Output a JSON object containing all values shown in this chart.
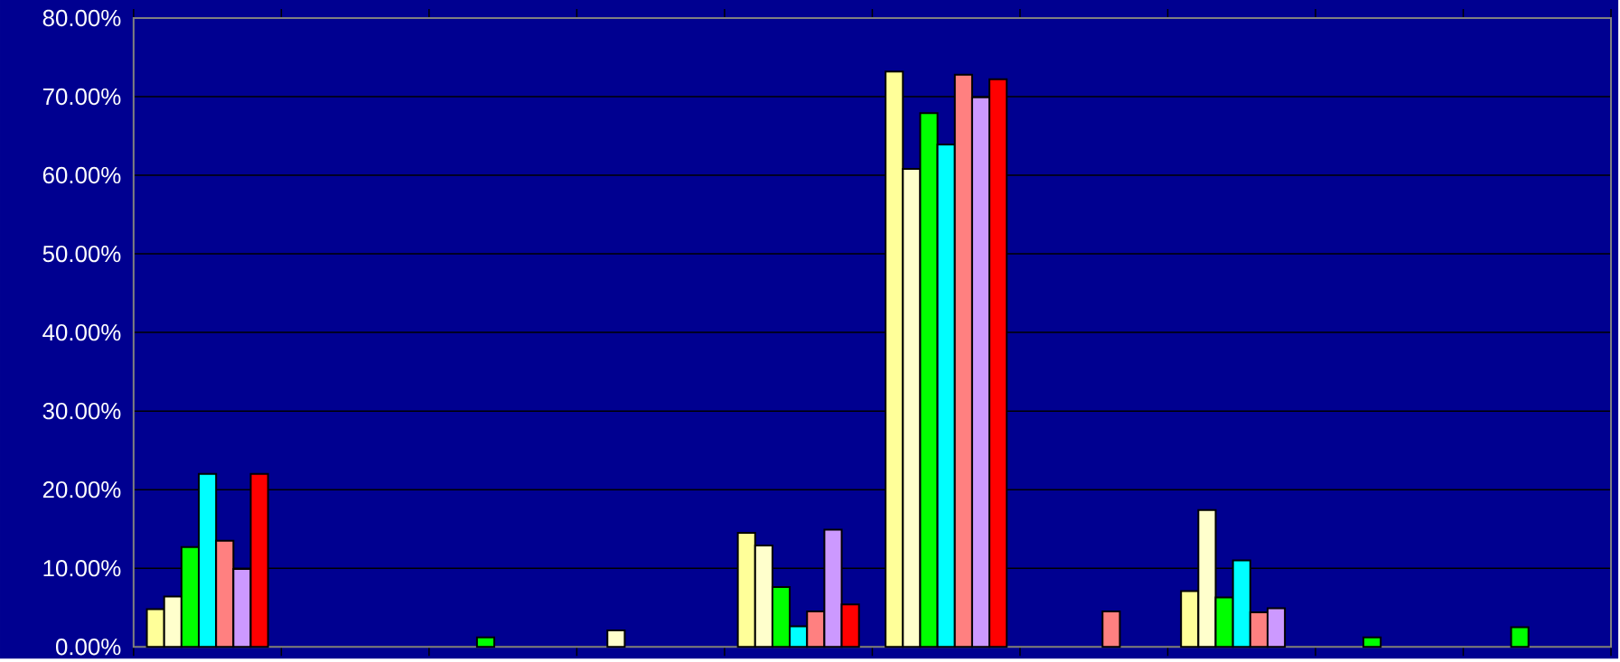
{
  "chart_data": {
    "type": "bar",
    "categories": [
      null,
      null,
      null,
      null,
      null,
      null,
      null,
      null,
      null,
      null
    ],
    "series": [
      {
        "color": "#ffff99",
        "values": [
          4.8,
          null,
          null,
          null,
          14.5,
          73.2,
          null,
          7.1,
          null,
          null
        ]
      },
      {
        "color": "#ffffcc",
        "values": [
          6.4,
          null,
          null,
          2.1,
          12.9,
          60.8,
          null,
          17.4,
          null,
          null
        ]
      },
      {
        "color": "#00ff00",
        "values": [
          12.7,
          null,
          1.2,
          null,
          7.6,
          67.9,
          null,
          6.3,
          1.2,
          2.5
        ]
      },
      {
        "color": "#00ffff",
        "values": [
          22.0,
          null,
          null,
          null,
          2.6,
          63.9,
          null,
          11.0,
          null,
          null
        ]
      },
      {
        "color": "#ff8080",
        "values": [
          13.5,
          null,
          null,
          null,
          4.5,
          72.8,
          4.5,
          4.4,
          null,
          null
        ]
      },
      {
        "color": "#cc99ff",
        "values": [
          9.9,
          null,
          null,
          null,
          14.9,
          69.9,
          null,
          4.9,
          null,
          null
        ]
      },
      {
        "color": "#ff0000",
        "values": [
          22.0,
          null,
          null,
          null,
          5.4,
          72.2,
          null,
          null,
          null,
          null
        ]
      }
    ],
    "ylim": [
      0,
      80
    ],
    "yticks": [
      {
        "value": 0,
        "label": "0.00%"
      },
      {
        "value": 10,
        "label": "10.00%"
      },
      {
        "value": 20,
        "label": "20.00%"
      },
      {
        "value": 30,
        "label": "30.00%"
      },
      {
        "value": 40,
        "label": "40.00%"
      },
      {
        "value": 50,
        "label": "50.00%"
      },
      {
        "value": 60,
        "label": "60.00%"
      },
      {
        "value": 70,
        "label": "70.00%"
      },
      {
        "value": 80,
        "label": "80.00%"
      }
    ],
    "grid": "y",
    "legend": false,
    "tick_labels": "y"
  }
}
